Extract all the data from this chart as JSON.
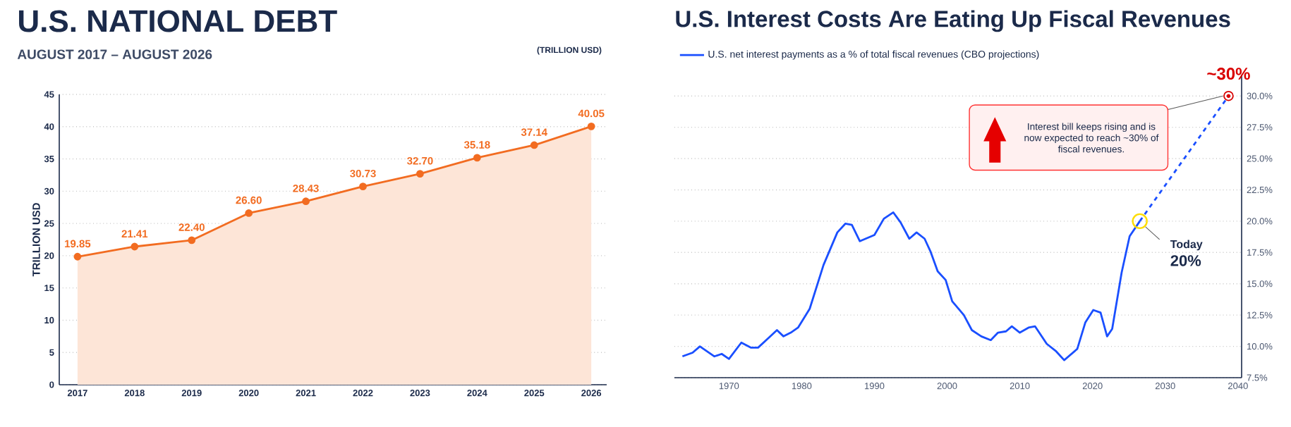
{
  "chart_data": [
    {
      "type": "area",
      "title": "U.S. NATIONAL DEBT",
      "subtitle": "AUGUST 2017 – AUGUST 2026",
      "ylabel": "TRILLION USD",
      "annotations": [
        "(TRILLION USD)"
      ],
      "categories": [
        "2017",
        "2018",
        "2019",
        "2020",
        "2021",
        "2022",
        "2023",
        "2024",
        "2025",
        "2026"
      ],
      "values": [
        19.85,
        21.41,
        22.4,
        26.6,
        28.43,
        30.73,
        32.7,
        35.18,
        37.14,
        40.05
      ],
      "value_labels": [
        "19.85",
        "21.41",
        "22.40",
        "26.60",
        "28.43",
        "30.73",
        "32.70",
        "35.18",
        "37.14",
        "40.05"
      ],
      "color": "#f26c21",
      "marker": "circle",
      "grid": "y",
      "ylim": [
        0,
        45
      ],
      "yticks": [
        0,
        5,
        10,
        15,
        20,
        25,
        30,
        35,
        40,
        45
      ]
    },
    {
      "type": "line",
      "title": "U.S. Interest Costs Are Eating Up Fiscal Revenues",
      "legend": "top",
      "annotations": [
        "Interest bill keeps rising and is now expected to reach ~30% of fiscal revenues.",
        "~30%",
        "Today",
        "20%"
      ],
      "series": [
        {
          "name": "U.S. net interest payments as a % of total fiscal revenues (CBO projections)",
          "color": "#1a4fff",
          "x": [
            1963.6,
            1965,
            1966,
            1968,
            1969,
            1970,
            1971.7,
            1973,
            1974,
            1975.3,
            1976.6,
            1977.5,
            1978.5,
            1979.5,
            1981.1,
            1983,
            1984.9,
            1986,
            1986.9,
            1988,
            1990,
            1991.3,
            1992.6,
            1993.6,
            1994.8,
            1995.8,
            1996.9,
            1997.7,
            1998.7,
            1999.8,
            2000.7,
            2002.3,
            2003.4,
            2004.7,
            2006,
            2007,
            2008.1,
            2008.9,
            2010,
            2011.2,
            2012.1,
            2013.7,
            2015,
            2016.1,
            2017.9,
            2019,
            2020.1,
            2021.1,
            2022,
            2022.7,
            2024,
            2025.1,
            2026.5
          ],
          "values": [
            9.2,
            9.5,
            10.0,
            9.2,
            9.4,
            9.0,
            10.3,
            9.9,
            9.9,
            10.6,
            11.3,
            10.8,
            11.1,
            11.5,
            13.0,
            16.5,
            19.1,
            19.8,
            19.7,
            18.4,
            18.9,
            20.2,
            20.7,
            19.9,
            18.6,
            19.1,
            18.6,
            17.6,
            16.0,
            15.3,
            13.6,
            12.5,
            11.3,
            10.8,
            10.5,
            11.1,
            11.2,
            11.6,
            11.1,
            11.5,
            11.6,
            10.2,
            9.6,
            8.9,
            9.8,
            11.9,
            12.9,
            12.7,
            10.8,
            11.4,
            15.9,
            18.8,
            20.0
          ]
        },
        {
          "color": "#1a4fff",
          "line_style": "dashed",
          "x": [
            2026.5,
            2038.7
          ],
          "values": [
            20.0,
            30.0
          ]
        }
      ],
      "xlim": [
        1962.5,
        2040.5
      ],
      "ylim": [
        7.5,
        31.7
      ],
      "grid": "y",
      "xticks": [
        1970,
        1980,
        1990,
        2000,
        2010,
        2020,
        2030,
        2040
      ],
      "yticks": [
        {
          "value": 7.5,
          "label": "7.5%"
        },
        {
          "value": 10,
          "label": "10.0%"
        },
        {
          "value": 12.5,
          "label": "12.5%"
        },
        {
          "value": 15,
          "label": "15.0%"
        },
        {
          "value": 17.5,
          "label": "17.5%"
        },
        {
          "value": 20,
          "label": "20.0%"
        },
        {
          "value": 22.5,
          "label": "22.5%"
        },
        {
          "value": 25,
          "label": "25.0%"
        },
        {
          "value": 27.5,
          "label": "27.5%"
        },
        {
          "value": 30,
          "label": "30.0%"
        }
      ]
    }
  ]
}
